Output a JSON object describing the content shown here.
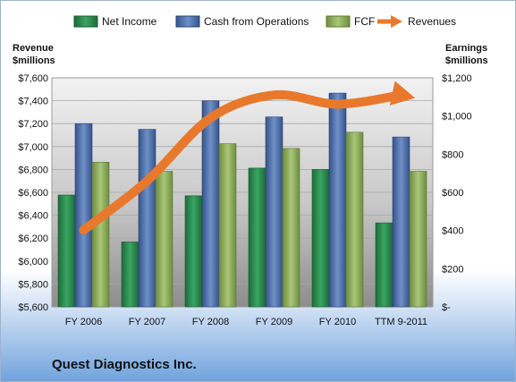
{
  "company_name": "Quest Diagnostics Inc.",
  "chart_data": {
    "type": "bar",
    "categories": [
      "FY 2006",
      "FY 2007",
      "FY 2008",
      "FY 2009",
      "FY 2010",
      "TTM 9-2011"
    ],
    "series": [
      {
        "name": "Net Income",
        "axis": "right",
        "color": "#2e8b4f",
        "values": [
          586,
          340,
          582,
          727,
          720,
          440
        ]
      },
      {
        "name": "Cash from Operations",
        "axis": "right",
        "color": "#4f6fa8",
        "values": [
          960,
          930,
          1080,
          995,
          1120,
          890
        ]
      },
      {
        "name": "FCF",
        "axis": "right",
        "color": "#8fae5a",
        "values": [
          758,
          710,
          855,
          830,
          915,
          710
        ]
      },
      {
        "name": "Revenues",
        "axis": "left",
        "type": "line",
        "color": "#e8792c",
        "values": [
          6270,
          6700,
          7250,
          7450,
          7370,
          7450
        ]
      }
    ],
    "left_axis": {
      "title": [
        "Revenue",
        "$millions"
      ],
      "ylim": [
        5600,
        7600
      ],
      "ticks": [
        "$5,600",
        "$5,800",
        "$6,000",
        "$6,200",
        "$6,400",
        "$6,600",
        "$6,800",
        "$7,000",
        "$7,200",
        "$7,400",
        "$7,600"
      ]
    },
    "right_axis": {
      "title": [
        "Earnings",
        "$millions"
      ],
      "ylim": [
        0,
        1200
      ],
      "ticks": [
        "$-",
        "$200",
        "$400",
        "$600",
        "$800",
        "$1,000",
        "$1,200"
      ]
    },
    "legend": {
      "position": "top"
    },
    "grid": true
  }
}
